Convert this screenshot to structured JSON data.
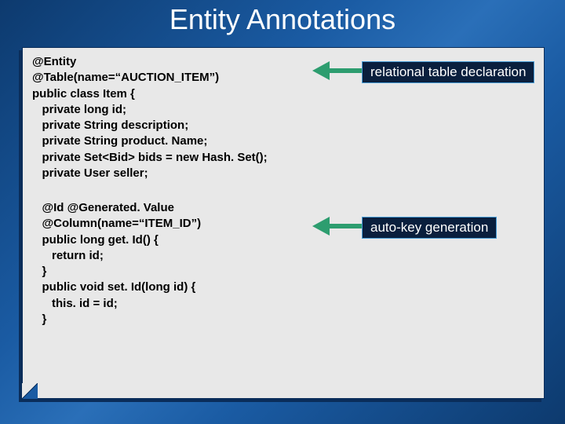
{
  "title": "Entity Annotations",
  "codeBlock1": "@Entity\n@Table(name=“AUCTION_ITEM”)\npublic class Item {\n   private long id;\n   private String description;\n   private String product. Name;\n   private Set<Bid> bids = new Hash. Set();\n   private User seller;",
  "codeBlock2": "   @Id @Generated. Value\n   @Column(name=“ITEM_ID”)\n   public long get. Id() {\n      return id;\n   }\n   public void set. Id(long id) {\n      this. id = id;\n   }",
  "callout1": "relational table declaration",
  "callout2": "auto-key generation",
  "colors": {
    "bg_gradient_start": "#0d3a6e",
    "bg_gradient_mid": "#2a6fb8",
    "panel_bg": "#e8e8e8",
    "panel_shadow": "#0a2d5a",
    "callout_bg": "#0a1f3d",
    "callout_border": "#4a9fd8",
    "arrow_color": "#2d9d6f",
    "title_color": "#ffffff"
  },
  "fonts": {
    "title_size": 36,
    "code_size": 15,
    "callout_size": 17
  }
}
